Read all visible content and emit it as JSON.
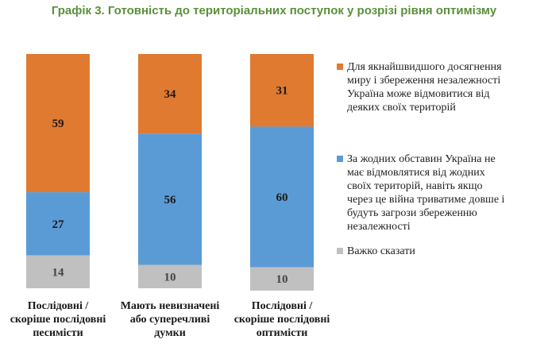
{
  "title": "Графік 3. Готовність до територіальних поступок у розрізі рівня оптимізму",
  "colors": {
    "orange": "#e07a30",
    "blue": "#5b9bd5",
    "gray": "#c0c0c0",
    "title_green": "#5b8f3a"
  },
  "chart_data": {
    "type": "bar",
    "stacked": true,
    "percent": true,
    "categories": [
      [
        "Послідовні /",
        "скоріше послідовні",
        "песимісти"
      ],
      [
        "Мають невизначені",
        "або суперечливі",
        "думки"
      ],
      [
        "Послідовні /",
        "скоріше послідовні",
        "оптимісти"
      ]
    ],
    "series": [
      {
        "name": "Для якнайшвидшого досягнення миру і збереження незалежності Україна може відмовитися від деяких своїх територій",
        "color": "#e07a30",
        "values": [
          59,
          34,
          31
        ]
      },
      {
        "name": "За жодних обставин Україна не має відмовлятися від жодних своїх територій, навіть якщо через це війна триватиме довше і будуть загрози збереженню незалежності",
        "color": "#5b9bd5",
        "values": [
          27,
          56,
          60
        ]
      },
      {
        "name": "Важко сказати",
        "color": "#c0c0c0",
        "values": [
          14,
          10,
          10
        ]
      }
    ],
    "legend_position": "right",
    "grid": false
  },
  "legend": [
    [
      "Для якнайшвидшого досягнення",
      "миру і збереження незалежності",
      "Україна може відмовитися від",
      "деяких своїх територій"
    ],
    [
      "За жодних обставин Україна не",
      "має відмовлятися від жодних",
      "своїх територій, навіть якщо",
      "через це війна триватиме довше і",
      "будуть загрози збереженню",
      "незалежності"
    ],
    [
      "Важко сказати"
    ]
  ]
}
